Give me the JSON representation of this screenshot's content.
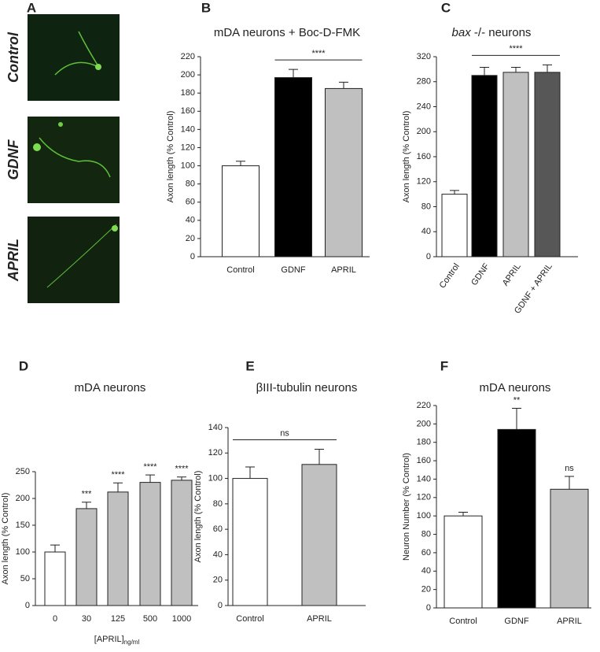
{
  "panel_a": {
    "label": "A",
    "images": [
      "Control",
      "GDNF",
      "APRIL"
    ]
  },
  "chart_data": [
    {
      "type": "bar",
      "label": "B",
      "title": "mDA neurons + Boc-D-FMK",
      "ylabel": "Axon length (% Control)",
      "categories": [
        "Control",
        "GDNF",
        "APRIL"
      ],
      "values": [
        100,
        197,
        185
      ],
      "errors": [
        5,
        9,
        7
      ],
      "colors": [
        "#ffffff",
        "#000000",
        "#c0c0c0"
      ],
      "ylim": [
        0,
        220
      ],
      "yticks": [
        0,
        20,
        40,
        60,
        80,
        100,
        120,
        140,
        160,
        180,
        200,
        220
      ],
      "brackets": [
        {
          "from": "GDNF",
          "to": "APRIL",
          "text": "****"
        }
      ]
    },
    {
      "type": "bar",
      "label": "C",
      "title_italic": "bax",
      "title": " -/- neurons",
      "ylabel": "Axon length (% Control)",
      "categories": [
        "Control",
        "GDNF",
        "APRIL",
        "GDNF + APRIL"
      ],
      "values": [
        100,
        290,
        295,
        295
      ],
      "errors": [
        6,
        13,
        8,
        12
      ],
      "colors": [
        "#ffffff",
        "#000000",
        "#c0c0c0",
        "#575757"
      ],
      "ylim": [
        0,
        320
      ],
      "yticks": [
        0,
        40,
        80,
        120,
        160,
        200,
        240,
        280,
        320
      ],
      "rotate_labels": true,
      "brackets": [
        {
          "from": "GDNF",
          "to": "GDNF + APRIL",
          "text": "****"
        }
      ]
    },
    {
      "type": "bar",
      "label": "D",
      "title": "mDA neurons",
      "ylabel": "Axon length (% Control)",
      "xlabel": "[APRIL]",
      "xlabel_sub": "ng/ml",
      "categories": [
        "0",
        "30",
        "125",
        "500",
        "1000"
      ],
      "values": [
        100,
        181,
        212,
        230,
        234
      ],
      "errors": [
        13,
        12,
        17,
        14,
        6
      ],
      "colors": [
        "#ffffff",
        "#c0c0c0",
        "#c0c0c0",
        "#c0c0c0",
        "#c0c0c0"
      ],
      "ylim": [
        0,
        250
      ],
      "yticks": [
        0,
        50,
        100,
        150,
        200,
        250
      ],
      "stars": [
        {
          "at": "30",
          "text": "***"
        },
        {
          "at": "125",
          "text": "****"
        },
        {
          "at": "500",
          "text": "****"
        },
        {
          "at": "1000",
          "text": "****"
        }
      ]
    },
    {
      "type": "bar",
      "label": "E",
      "title": "βIII-tubulin neurons",
      "ylabel": "Axon length (% Control)",
      "categories": [
        "Control",
        "APRIL"
      ],
      "values": [
        100,
        111
      ],
      "errors": [
        9,
        12
      ],
      "colors": [
        "#ffffff",
        "#c0c0c0"
      ],
      "ylim": [
        0,
        140
      ],
      "yticks": [
        0,
        20,
        40,
        60,
        80,
        100,
        120,
        140
      ],
      "brackets": [
        {
          "from": "Control",
          "to": "APRIL",
          "text": "ns"
        }
      ]
    },
    {
      "type": "bar",
      "label": "F",
      "title": "mDA neurons",
      "ylabel": "Neuron Number (% Control)",
      "categories": [
        "Control",
        "GDNF",
        "APRIL"
      ],
      "values": [
        100,
        194,
        129
      ],
      "errors": [
        4,
        23,
        14
      ],
      "colors": [
        "#ffffff",
        "#000000",
        "#c0c0c0"
      ],
      "ylim": [
        0,
        220
      ],
      "yticks": [
        0,
        20,
        40,
        60,
        80,
        100,
        120,
        140,
        160,
        180,
        200,
        220
      ],
      "stars": [
        {
          "at": "GDNF",
          "text": "**"
        },
        {
          "at": "APRIL",
          "text": "ns"
        }
      ]
    }
  ]
}
